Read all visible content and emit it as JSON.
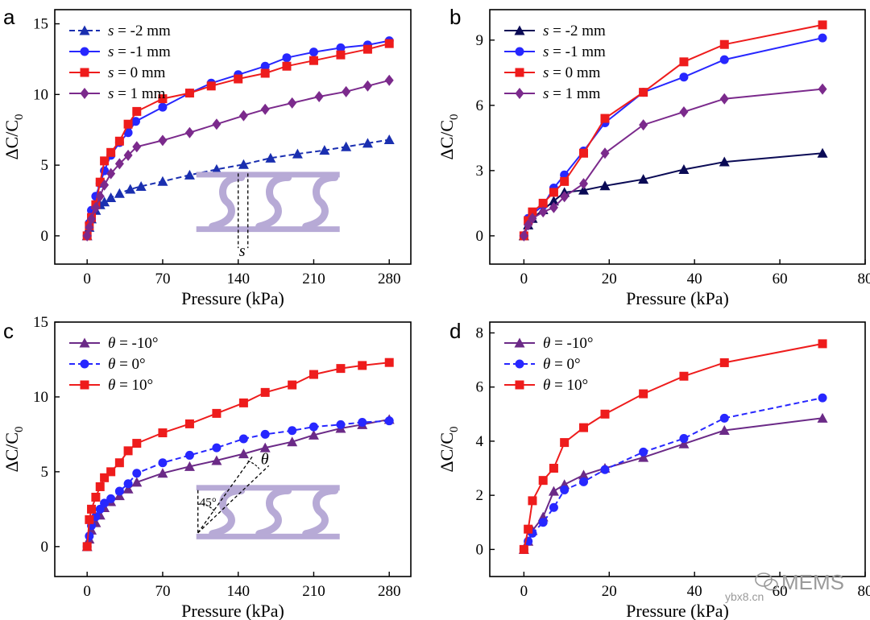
{
  "chart_data": [
    {
      "panel": "a",
      "type": "line",
      "title": "",
      "xlabel": "Pressure (kPa)",
      "ylabel": "ΔC/C0",
      "xlim": [
        -30,
        300
      ],
      "ylim": [
        -2,
        16
      ],
      "xticks": [
        0,
        70,
        140,
        210,
        280
      ],
      "yticks": [
        0,
        5,
        10,
        15
      ],
      "legend_position": "top-left",
      "series": [
        {
          "name_var": "s",
          "name_value": " = -2 mm",
          "color": "#1a2fb0",
          "marker": "triangle",
          "dash": "dashed",
          "x": [
            0,
            2,
            4,
            8,
            12,
            16,
            22,
            30,
            40,
            50,
            70,
            95,
            120,
            145,
            170,
            195,
            220,
            240,
            260,
            280
          ],
          "y": [
            0,
            0.6,
            1.2,
            1.8,
            2.2,
            2.4,
            2.7,
            3.0,
            3.3,
            3.5,
            3.85,
            4.3,
            4.7,
            5.05,
            5.5,
            5.8,
            6.05,
            6.3,
            6.55,
            6.8
          ]
        },
        {
          "name_var": "s",
          "name_value": " = -1 mm",
          "color": "#2727ff",
          "marker": "circle",
          "dash": "solid",
          "x": [
            0,
            2,
            4,
            8,
            12,
            16,
            22,
            30,
            38,
            45,
            70,
            95,
            115,
            140,
            165,
            185,
            210,
            235,
            260,
            280
          ],
          "y": [
            0,
            0.9,
            1.8,
            2.8,
            3.7,
            4.6,
            5.7,
            6.6,
            7.3,
            8.1,
            9.1,
            10.1,
            10.8,
            11.4,
            12.0,
            12.6,
            13.0,
            13.3,
            13.5,
            13.8
          ]
        },
        {
          "name_var": "s",
          "name_value": " = 0 mm",
          "color": "#ee1c1c",
          "marker": "square",
          "dash": "solid",
          "x": [
            0,
            2,
            4,
            8,
            12,
            16,
            22,
            30,
            38,
            46,
            70,
            95,
            115,
            140,
            165,
            185,
            210,
            235,
            260,
            280
          ],
          "y": [
            0,
            0.7,
            1.3,
            2.2,
            3.8,
            5.3,
            5.9,
            6.7,
            7.9,
            8.8,
            9.7,
            10.1,
            10.6,
            11.1,
            11.5,
            12.0,
            12.4,
            12.8,
            13.2,
            13.6
          ]
        },
        {
          "name_var": "s",
          "name_value": " = 1 mm",
          "color": "#7b2a8c",
          "marker": "diamond",
          "dash": "solid",
          "x": [
            0,
            2,
            4,
            8,
            12,
            16,
            22,
            30,
            38,
            46,
            70,
            95,
            120,
            145,
            165,
            190,
            215,
            240,
            260,
            280
          ],
          "y": [
            0,
            0.6,
            1.2,
            2.0,
            2.8,
            3.6,
            4.4,
            5.1,
            5.7,
            6.3,
            6.75,
            7.3,
            7.9,
            8.5,
            8.95,
            9.4,
            9.85,
            10.2,
            10.6,
            11.0
          ]
        }
      ],
      "inset": {
        "kind": "offset",
        "label": "s"
      }
    },
    {
      "panel": "b",
      "type": "line",
      "title": "",
      "xlabel": "Pressure (kPa)",
      "ylabel": "ΔC/C0",
      "xlim": [
        -8,
        80
      ],
      "ylim": [
        -1.3,
        10.4
      ],
      "xticks": [
        0,
        20,
        40,
        60,
        80
      ],
      "yticks": [
        0,
        3,
        6,
        9
      ],
      "legend_position": "top-left",
      "series": [
        {
          "name_var": "s",
          "name_value": " = -2 mm",
          "color": "#0a0a55",
          "marker": "triangle",
          "dash": "solid",
          "x": [
            0,
            1,
            2,
            4.5,
            7,
            9.5,
            14,
            19,
            28,
            37.5,
            47,
            70
          ],
          "y": [
            0,
            0.5,
            0.8,
            1.2,
            1.6,
            2.0,
            2.1,
            2.3,
            2.6,
            3.05,
            3.4,
            3.8
          ]
        },
        {
          "name_var": "s",
          "name_value": " = -1 mm",
          "color": "#2727ff",
          "marker": "circle",
          "dash": "solid",
          "x": [
            0,
            1,
            2,
            4.5,
            7,
            9.5,
            14,
            19,
            28,
            37.5,
            47,
            70
          ],
          "y": [
            0,
            0.8,
            1.0,
            1.4,
            2.2,
            2.8,
            3.9,
            5.2,
            6.6,
            7.3,
            8.1,
            9.1
          ]
        },
        {
          "name_var": "s",
          "name_value": " = 0 mm",
          "color": "#ee1c1c",
          "marker": "square",
          "dash": "solid",
          "x": [
            0,
            1,
            2,
            4.5,
            7,
            9.5,
            14,
            19,
            28,
            37.5,
            47,
            70
          ],
          "y": [
            0,
            0.7,
            1.1,
            1.5,
            2.0,
            2.5,
            3.8,
            5.4,
            6.6,
            8.0,
            8.8,
            9.7
          ]
        },
        {
          "name_var": "s",
          "name_value": " = 1 mm",
          "color": "#7b2a8c",
          "marker": "diamond",
          "dash": "solid",
          "x": [
            0,
            1,
            2,
            4.5,
            7,
            9.5,
            14,
            19,
            28,
            37.5,
            47,
            70
          ],
          "y": [
            0,
            0.5,
            0.8,
            1.1,
            1.3,
            1.8,
            2.4,
            3.8,
            5.1,
            5.7,
            6.3,
            6.75
          ]
        }
      ]
    },
    {
      "panel": "c",
      "type": "line",
      "title": "",
      "xlabel": "Pressure (kPa)",
      "ylabel": "ΔC/C0",
      "xlim": [
        -30,
        300
      ],
      "ylim": [
        -2,
        15
      ],
      "xticks": [
        0,
        70,
        140,
        210,
        280
      ],
      "yticks": [
        0,
        5,
        10,
        15
      ],
      "legend_position": "top-left",
      "series": [
        {
          "name_var": "θ",
          "name_value": "= -10°",
          "color": "#6b2a87",
          "marker": "triangle",
          "dash": "solid",
          "x": [
            0,
            2,
            4,
            8,
            12,
            16,
            22,
            30,
            38,
            46,
            70,
            95,
            120,
            145,
            165,
            190,
            210,
            235,
            255,
            280
          ],
          "y": [
            0,
            0.5,
            1.1,
            1.6,
            2.1,
            2.6,
            3.0,
            3.4,
            3.85,
            4.3,
            4.9,
            5.35,
            5.75,
            6.2,
            6.6,
            7.0,
            7.45,
            7.9,
            8.15,
            8.5
          ]
        },
        {
          "name_var": "θ",
          "name_value": "= 0°",
          "color": "#2727ff",
          "marker": "circle",
          "dash": "dashed",
          "x": [
            0,
            2,
            4,
            8,
            12,
            16,
            22,
            30,
            38,
            46,
            70,
            95,
            120,
            145,
            165,
            190,
            210,
            235,
            255,
            280
          ],
          "y": [
            0,
            0.7,
            1.4,
            2.0,
            2.5,
            2.9,
            3.2,
            3.7,
            4.2,
            4.9,
            5.6,
            6.1,
            6.6,
            7.2,
            7.5,
            7.75,
            8.0,
            8.15,
            8.3,
            8.4
          ]
        },
        {
          "name_var": "θ",
          "name_value": "= 10°",
          "color": "#ee1c1c",
          "marker": "square",
          "dash": "solid",
          "x": [
            0,
            2,
            4,
            8,
            12,
            16,
            22,
            30,
            38,
            46,
            70,
            95,
            120,
            145,
            165,
            190,
            210,
            235,
            255,
            280
          ],
          "y": [
            0,
            1.8,
            2.5,
            3.3,
            4.0,
            4.6,
            5.0,
            5.6,
            6.4,
            6.9,
            7.6,
            8.2,
            8.9,
            9.6,
            10.3,
            10.8,
            11.5,
            11.9,
            12.1,
            12.3
          ]
        }
      ],
      "inset": {
        "kind": "angle",
        "angle_label": "45°",
        "theta_label": "θ"
      }
    },
    {
      "panel": "d",
      "type": "line",
      "title": "",
      "xlabel": "Pressure (kPa)",
      "ylabel": "ΔC/C0",
      "xlim": [
        -8,
        80
      ],
      "ylim": [
        -1,
        8.4
      ],
      "xticks": [
        0,
        20,
        40,
        60,
        80
      ],
      "yticks": [
        0,
        2,
        4,
        6,
        8
      ],
      "legend_position": "top-left",
      "series": [
        {
          "name_var": "θ",
          "name_value": "= -10°",
          "color": "#6b2a87",
          "marker": "triangle",
          "dash": "solid",
          "x": [
            0,
            1,
            2,
            4.5,
            7,
            9.5,
            14,
            19,
            28,
            37.5,
            47,
            70
          ],
          "y": [
            0,
            0.3,
            0.7,
            1.2,
            2.15,
            2.4,
            2.75,
            3.0,
            3.4,
            3.9,
            4.4,
            4.85
          ]
        },
        {
          "name_var": "θ",
          "name_value": "= 0°",
          "color": "#2727ff",
          "marker": "circle",
          "dash": "dashed",
          "x": [
            0,
            1,
            2,
            4.5,
            7,
            9.5,
            14,
            19,
            28,
            37.5,
            47,
            70
          ],
          "y": [
            0,
            0.3,
            0.6,
            1.0,
            1.55,
            2.2,
            2.5,
            2.95,
            3.6,
            4.1,
            4.85,
            5.6
          ]
        },
        {
          "name_var": "θ",
          "name_value": "= 10°",
          "color": "#ee1c1c",
          "marker": "square",
          "dash": "solid",
          "x": [
            0,
            1,
            2,
            4.5,
            7,
            9.5,
            14,
            19,
            28,
            37.5,
            47,
            70
          ],
          "y": [
            0,
            0.75,
            1.8,
            2.55,
            3.0,
            3.95,
            4.5,
            5.0,
            5.75,
            6.4,
            6.9,
            7.6
          ]
        }
      ]
    }
  ],
  "watermark": {
    "brand": "MEMS",
    "site": "ybx8.cn"
  }
}
